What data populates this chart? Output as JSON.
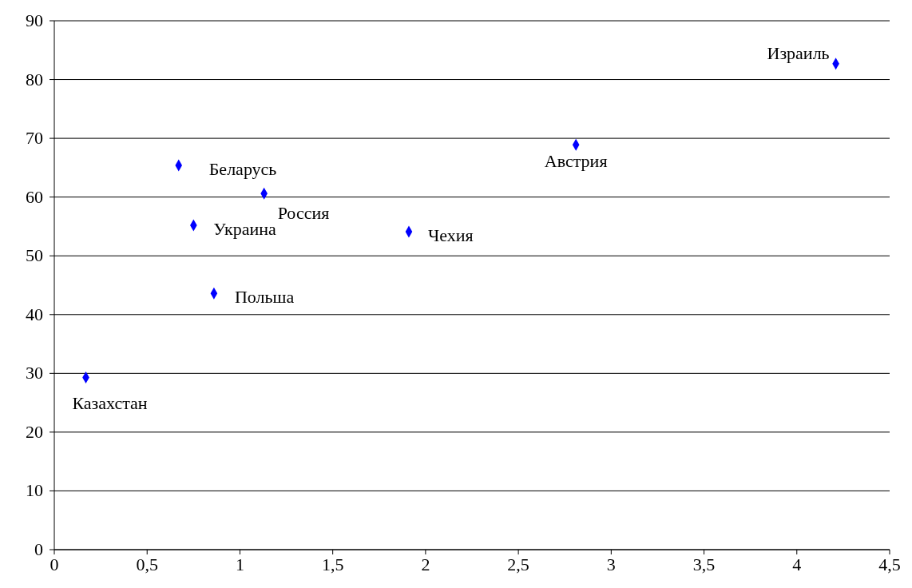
{
  "chart_data": {
    "type": "scatter",
    "x": [
      0.17,
      0.67,
      0.75,
      0.86,
      1.13,
      1.91,
      2.81,
      4.21
    ],
    "values": [
      29.3,
      65.4,
      55.2,
      43.6,
      60.6,
      54.1,
      68.9,
      82.7
    ],
    "color": "#0000ff",
    "marker": "diamond",
    "grid": "y",
    "xlim": [
      0,
      4.5
    ],
    "xticks": [
      0,
      {
        "value": 0.5,
        "label": "0,5"
      },
      1,
      {
        "value": 1.5,
        "label": "1,5"
      },
      2,
      {
        "value": 2.5,
        "label": "2,5"
      },
      3,
      {
        "value": 3.5,
        "label": "3,5"
      },
      4,
      {
        "value": 4.5,
        "label": "4,5"
      }
    ],
    "ylim": [
      0,
      90
    ],
    "yticks": [
      0,
      10,
      20,
      30,
      40,
      50,
      60,
      70,
      80,
      90
    ],
    "annotations": [
      {
        "text": "Казахстан",
        "x": 0.17,
        "y": 29.3
      },
      {
        "text": "Беларусь",
        "x": 0.67,
        "y": 65.4
      },
      {
        "text": "Украина",
        "x": 0.75,
        "y": 55.2
      },
      {
        "text": "Польша",
        "x": 0.86,
        "y": 43.6
      },
      {
        "text": "Россия",
        "x": 1.13,
        "y": 60.6
      },
      {
        "text": "Чехия",
        "x": 1.91,
        "y": 54.1
      },
      {
        "text": "Австрия",
        "x": 2.81,
        "y": 68.9
      },
      {
        "text": "Израиль",
        "x": 4.21,
        "y": 82.7
      }
    ]
  }
}
